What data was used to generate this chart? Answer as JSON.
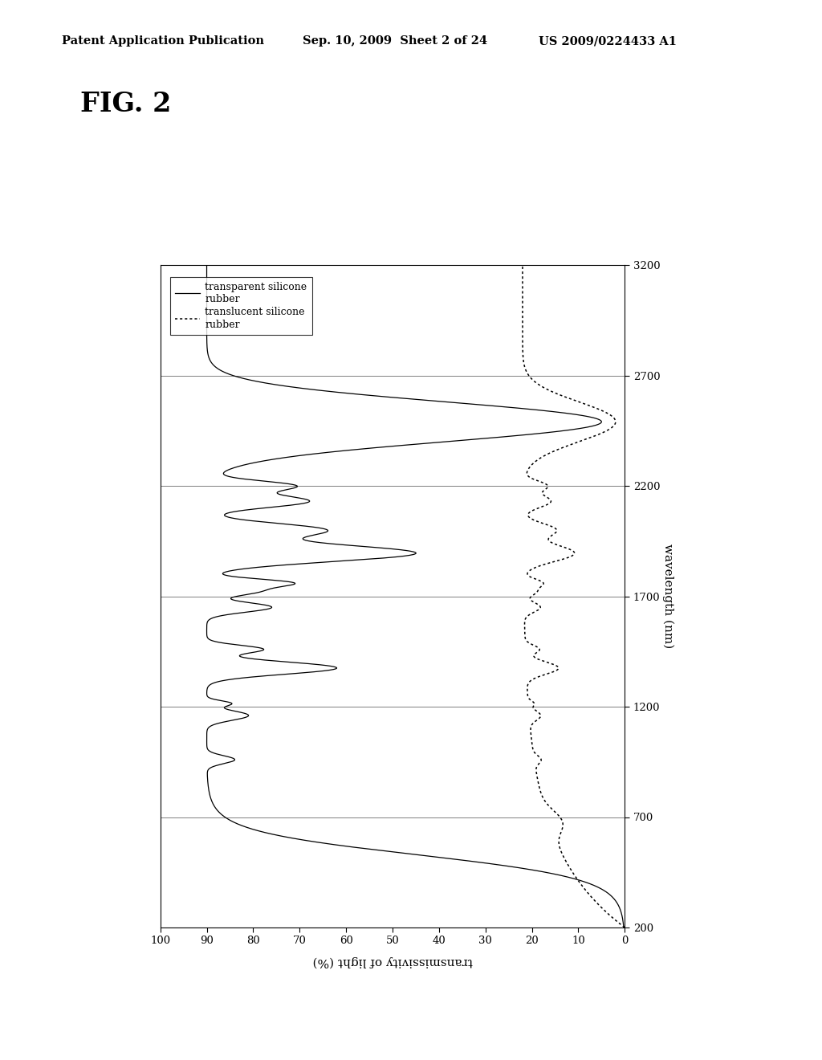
{
  "header_left": "Patent Application Publication",
  "header_mid": "Sep. 10, 2009  Sheet 2 of 24",
  "header_right": "US 2009/0224433 A1",
  "fig_label": "FIG. 2",
  "xlabel_rotated": "wavelength (nm)",
  "ylabel_rotated": "transmissivity of light (%)",
  "x_ticks": [
    200,
    700,
    1200,
    1700,
    2200,
    2700,
    3200
  ],
  "y_ticks": [
    0,
    10,
    20,
    30,
    40,
    50,
    60,
    70,
    80,
    90,
    100
  ],
  "legend_solid": "transparent silicone\nrubber",
  "legend_dotted": "translucent silicone\nrubber",
  "background_color": "#ffffff",
  "line_color": "#000000"
}
